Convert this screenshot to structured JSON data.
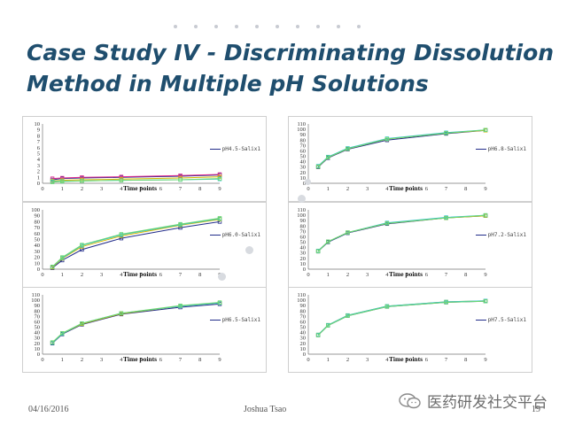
{
  "slide": {
    "title": "Case Study IV - Discriminating Dissolution Method in Multiple pH Solutions",
    "date": "04/16/2016",
    "author": "Joshua Tsao",
    "page_number": "19",
    "watermark": "医药研发社交平台",
    "watermark_icon": "wechat-icon"
  },
  "chart_data": [
    {
      "type": "line",
      "xlabel": "Time points",
      "xticks": [
        0,
        1,
        2,
        3,
        4,
        5,
        6,
        7,
        8,
        9
      ],
      "xlim": [
        0,
        9
      ],
      "yticks": [
        0,
        1,
        2,
        3,
        4,
        5,
        6,
        7,
        8,
        9,
        10
      ],
      "ylim": [
        0,
        10
      ],
      "legend": "pH4.5-Salix1",
      "legend_position": "right",
      "series": [
        {
          "color": "#222c8a",
          "x": [
            0.5,
            1,
            2,
            4,
            7,
            9
          ],
          "y": [
            0.6,
            0.8,
            0.9,
            1.0,
            1.2,
            1.4
          ]
        },
        {
          "color": "#e0298e",
          "x": [
            0.5,
            1,
            2,
            4,
            7,
            9
          ],
          "y": [
            0.8,
            0.9,
            1.0,
            1.1,
            1.3,
            1.5
          ]
        },
        {
          "color": "#d6b800",
          "x": [
            0.5,
            1,
            2,
            4,
            7,
            9
          ],
          "y": [
            0.4,
            0.5,
            0.6,
            0.7,
            0.9,
            1.1
          ]
        },
        {
          "color": "#30c0d0",
          "x": [
            0.5,
            1,
            2,
            4,
            7,
            9
          ],
          "y": [
            0.3,
            0.35,
            0.4,
            0.5,
            0.6,
            0.7
          ]
        },
        {
          "color": "#6fd86f",
          "x": [
            0.5,
            1,
            2,
            4,
            7,
            9
          ],
          "y": [
            0.2,
            0.3,
            0.4,
            0.5,
            0.6,
            0.8
          ]
        }
      ]
    },
    {
      "type": "line",
      "xlabel": "Time points",
      "xticks": [
        0,
        1,
        2,
        3,
        4,
        5,
        6,
        7,
        8,
        9
      ],
      "xlim": [
        0,
        9
      ],
      "yticks": [
        0,
        10,
        20,
        30,
        40,
        50,
        60,
        70,
        80,
        90,
        100,
        110
      ],
      "ylim": [
        0,
        110
      ],
      "legend": "pH6.8-Salix1",
      "legend_position": "right",
      "series": [
        {
          "color": "#222c8a",
          "x": [
            0.5,
            1,
            2,
            4,
            7,
            9
          ],
          "y": [
            30,
            47,
            63,
            80,
            92,
            98
          ]
        },
        {
          "color": "#d6b800",
          "x": [
            0.5,
            1,
            2,
            4,
            7,
            9
          ],
          "y": [
            31,
            48,
            64,
            82,
            93,
            98
          ]
        },
        {
          "color": "#30c0d0",
          "x": [
            0.5,
            1,
            2,
            4,
            7,
            9
          ],
          "y": [
            32,
            49,
            65,
            83,
            94,
            99
          ]
        },
        {
          "color": "#6fd86f",
          "x": [
            0.5,
            1,
            2,
            4,
            7,
            9
          ],
          "y": [
            31,
            48,
            64,
            82,
            93,
            99
          ]
        }
      ]
    },
    {
      "type": "line",
      "xlabel": "Time points",
      "xticks": [
        0,
        1,
        2,
        3,
        4,
        5,
        6,
        7,
        8,
        9
      ],
      "xlim": [
        0,
        9
      ],
      "yticks": [
        0,
        10,
        20,
        30,
        40,
        50,
        60,
        70,
        80,
        90,
        100
      ],
      "ylim": [
        0,
        100
      ],
      "legend": "pH6.0-Salix1",
      "legend_position": "right",
      "series": [
        {
          "color": "#222c8a",
          "x": [
            0.5,
            1,
            2,
            4,
            7,
            9
          ],
          "y": [
            2,
            15,
            33,
            52,
            70,
            80
          ]
        },
        {
          "color": "#d6b800",
          "x": [
            0.5,
            1,
            2,
            4,
            7,
            9
          ],
          "y": [
            3,
            18,
            38,
            56,
            74,
            84
          ]
        },
        {
          "color": "#30c0d0",
          "x": [
            0.5,
            1,
            2,
            4,
            7,
            9
          ],
          "y": [
            4,
            19,
            40,
            58,
            75,
            85
          ]
        },
        {
          "color": "#6fd86f",
          "x": [
            0.5,
            1,
            2,
            4,
            7,
            9
          ],
          "y": [
            4,
            20,
            41,
            59,
            76,
            86
          ]
        }
      ]
    },
    {
      "type": "line",
      "xlabel": "Time points",
      "xticks": [
        0,
        1,
        2,
        3,
        4,
        5,
        6,
        7,
        8,
        9
      ],
      "xlim": [
        0,
        9
      ],
      "yticks": [
        0,
        10,
        20,
        30,
        40,
        50,
        60,
        70,
        80,
        90,
        100,
        110
      ],
      "ylim": [
        0,
        110
      ],
      "legend": "pH7.2-Salix1",
      "legend_position": "right",
      "series": [
        {
          "color": "#222c8a",
          "x": [
            0.5,
            1,
            2,
            4,
            7,
            9
          ],
          "y": [
            33,
            50,
            67,
            84,
            95,
            99
          ]
        },
        {
          "color": "#d6b800",
          "x": [
            0.5,
            1,
            2,
            4,
            7,
            9
          ],
          "y": [
            34,
            51,
            68,
            85,
            95,
            99
          ]
        },
        {
          "color": "#30c0d0",
          "x": [
            0.5,
            1,
            2,
            4,
            7,
            9
          ],
          "y": [
            34,
            51,
            68,
            86,
            96,
            100
          ]
        },
        {
          "color": "#6fd86f",
          "x": [
            0.5,
            1,
            2,
            4,
            7,
            9
          ],
          "y": [
            33,
            51,
            68,
            85,
            95,
            100
          ]
        }
      ]
    },
    {
      "type": "line",
      "xlabel": "Time points",
      "xticks": [
        0,
        1,
        2,
        3,
        4,
        5,
        6,
        7,
        8,
        9
      ],
      "xlim": [
        0,
        9
      ],
      "yticks": [
        0,
        10,
        20,
        30,
        40,
        50,
        60,
        70,
        80,
        90,
        100,
        110
      ],
      "ylim": [
        0,
        110
      ],
      "legend": "pH6.5-Salix1",
      "legend_position": "right",
      "series": [
        {
          "color": "#222c8a",
          "x": [
            0.5,
            1,
            2,
            4,
            7,
            9
          ],
          "y": [
            20,
            37,
            55,
            74,
            87,
            93
          ]
        },
        {
          "color": "#d6b800",
          "x": [
            0.5,
            1,
            2,
            4,
            7,
            9
          ],
          "y": [
            21,
            38,
            56,
            75,
            89,
            95
          ]
        },
        {
          "color": "#30c0d0",
          "x": [
            0.5,
            1,
            2,
            4,
            7,
            9
          ],
          "y": [
            21,
            38,
            57,
            76,
            89,
            95
          ]
        },
        {
          "color": "#6fd86f",
          "x": [
            0.5,
            1,
            2,
            4,
            7,
            9
          ],
          "y": [
            22,
            39,
            57,
            76,
            90,
            96
          ]
        }
      ]
    },
    {
      "type": "line",
      "xlabel": "Time points",
      "xticks": [
        0,
        1,
        2,
        3,
        4,
        5,
        6,
        7,
        8,
        9
      ],
      "xlim": [
        0,
        9
      ],
      "yticks": [
        0,
        10,
        20,
        30,
        40,
        50,
        60,
        70,
        80,
        90,
        100,
        110
      ],
      "ylim": [
        0,
        110
      ],
      "legend": "pH7.5-Salix1",
      "legend_position": "right",
      "series": [
        {
          "color": "#5a3fbf",
          "x": [
            0.5,
            1,
            2,
            4,
            7,
            9
          ],
          "y": [
            35,
            53,
            71,
            88,
            96,
            98
          ]
        },
        {
          "color": "#d6b800",
          "x": [
            0.5,
            1,
            2,
            4,
            7,
            9
          ],
          "y": [
            36,
            54,
            72,
            89,
            97,
            99
          ]
        },
        {
          "color": "#30c0d0",
          "x": [
            0.5,
            1,
            2,
            4,
            7,
            9
          ],
          "y": [
            36,
            54,
            72,
            89,
            97,
            99
          ]
        },
        {
          "color": "#6fd86f",
          "x": [
            0.5,
            1,
            2,
            4,
            7,
            9
          ],
          "y": [
            35,
            53,
            71,
            88,
            96,
            98
          ]
        }
      ]
    }
  ]
}
